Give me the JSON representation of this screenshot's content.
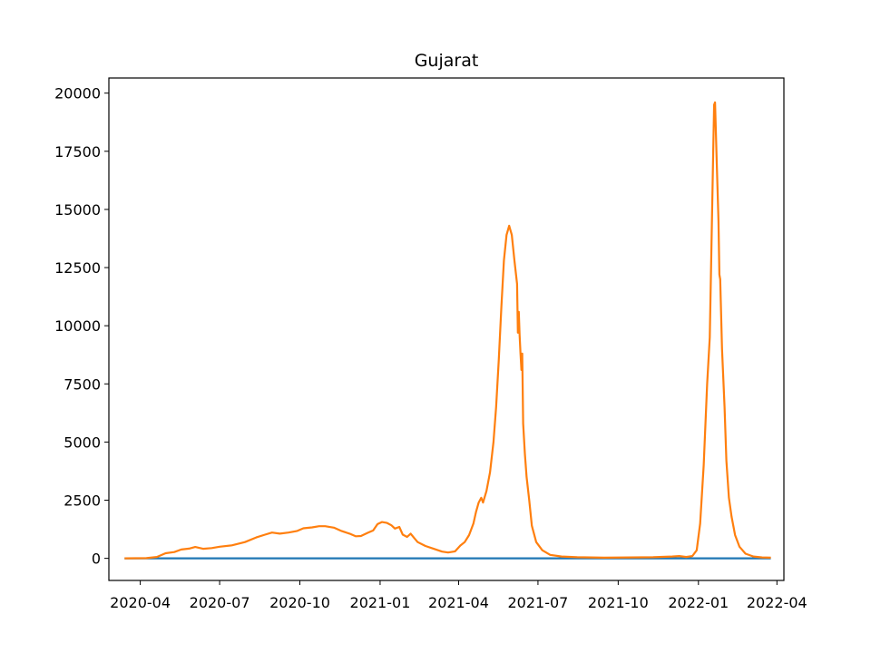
{
  "chart_data": {
    "type": "line",
    "title": "Gujarat",
    "xlabel": "",
    "ylabel": "",
    "ylim": [
      -950,
      20650
    ],
    "xlim": [
      "2020-02-25",
      "2022-04-09"
    ],
    "grid": false,
    "yticks": [
      0,
      2500,
      5000,
      7500,
      10000,
      12500,
      15000,
      17500,
      20000
    ],
    "ytick_labels": [
      "0",
      "2500",
      "5000",
      "7500",
      "10000",
      "12500",
      "15000",
      "17500",
      "20000"
    ],
    "xticks": [
      "2020-04-01",
      "2020-07-01",
      "2020-10-01",
      "2021-01-01",
      "2021-04-01",
      "2021-07-01",
      "2021-10-01",
      "2022-01-01",
      "2022-04-01"
    ],
    "xtick_labels": [
      "2020-04",
      "2020-07",
      "2020-10",
      "2021-01",
      "2021-04",
      "2021-07",
      "2021-10",
      "2022-01",
      "2022-04"
    ],
    "series": [
      {
        "color": "#1f77b4",
        "points": [
          [
            "2020-03-14",
            0
          ],
          [
            "2022-03-25",
            0
          ]
        ]
      },
      {
        "color": "#ff7f0e",
        "points": [
          [
            "2020-03-14",
            0
          ],
          [
            "2020-04-08",
            10
          ],
          [
            "2020-04-20",
            60
          ],
          [
            "2020-04-30",
            220
          ],
          [
            "2020-05-10",
            270
          ],
          [
            "2020-05-18",
            380
          ],
          [
            "2020-05-27",
            420
          ],
          [
            "2020-06-03",
            490
          ],
          [
            "2020-06-12",
            410
          ],
          [
            "2020-06-22",
            440
          ],
          [
            "2020-07-01",
            500
          ],
          [
            "2020-07-15",
            560
          ],
          [
            "2020-07-30",
            700
          ],
          [
            "2020-08-12",
            900
          ],
          [
            "2020-08-22",
            1020
          ],
          [
            "2020-08-30",
            1110
          ],
          [
            "2020-09-08",
            1060
          ],
          [
            "2020-09-18",
            1110
          ],
          [
            "2020-09-28",
            1180
          ],
          [
            "2020-10-05",
            1290
          ],
          [
            "2020-10-15",
            1330
          ],
          [
            "2020-10-23",
            1380
          ],
          [
            "2020-10-30",
            1380
          ],
          [
            "2020-11-09",
            1320
          ],
          [
            "2020-11-18",
            1170
          ],
          [
            "2020-11-27",
            1060
          ],
          [
            "2020-12-04",
            950
          ],
          [
            "2020-12-10",
            960
          ],
          [
            "2020-12-18",
            1100
          ],
          [
            "2020-12-24",
            1200
          ],
          [
            "2020-12-29",
            1470
          ],
          [
            "2021-01-03",
            1560
          ],
          [
            "2021-01-09",
            1520
          ],
          [
            "2021-01-14",
            1420
          ],
          [
            "2021-01-18",
            1280
          ],
          [
            "2021-01-23",
            1350
          ],
          [
            "2021-01-27",
            1020
          ],
          [
            "2021-02-01",
            920
          ],
          [
            "2021-02-05",
            1060
          ],
          [
            "2021-02-09",
            880
          ],
          [
            "2021-02-13",
            700
          ],
          [
            "2021-02-22",
            530
          ],
          [
            "2021-03-03",
            420
          ],
          [
            "2021-03-13",
            290
          ],
          [
            "2021-03-20",
            250
          ],
          [
            "2021-03-28",
            300
          ],
          [
            "2021-04-03",
            550
          ],
          [
            "2021-04-08",
            700
          ],
          [
            "2021-04-13",
            1000
          ],
          [
            "2021-04-18",
            1500
          ],
          [
            "2021-04-21",
            2000
          ],
          [
            "2021-04-24",
            2400
          ],
          [
            "2021-04-27",
            2600
          ],
          [
            "2021-04-29",
            2400
          ],
          [
            "2021-05-03",
            2900
          ],
          [
            "2021-05-07",
            3700
          ],
          [
            "2021-05-11",
            5000
          ],
          [
            "2021-05-14",
            6500
          ],
          [
            "2021-05-17",
            8500
          ],
          [
            "2021-05-20",
            10800
          ],
          [
            "2021-05-23",
            12800
          ],
          [
            "2021-05-26",
            13900
          ],
          [
            "2021-05-29",
            14300
          ],
          [
            "2021-06-01",
            13900
          ],
          [
            "2021-06-04",
            12800
          ],
          [
            "2021-06-07",
            11800
          ],
          [
            "2021-06-08",
            9700
          ],
          [
            "2021-06-09",
            10600
          ],
          [
            "2021-06-10",
            9600
          ],
          [
            "2021-06-11",
            8800
          ],
          [
            "2021-06-12",
            8100
          ],
          [
            "2021-06-13",
            8800
          ],
          [
            "2021-06-14",
            5800
          ],
          [
            "2021-06-16",
            4500
          ],
          [
            "2021-06-18",
            3500
          ],
          [
            "2021-06-21",
            2500
          ],
          [
            "2021-06-24",
            1400
          ],
          [
            "2021-06-29",
            700
          ],
          [
            "2021-07-06",
            350
          ],
          [
            "2021-07-15",
            150
          ],
          [
            "2021-07-28",
            80
          ],
          [
            "2021-08-15",
            50
          ],
          [
            "2021-09-15",
            30
          ],
          [
            "2021-10-15",
            40
          ],
          [
            "2021-11-10",
            50
          ],
          [
            "2021-12-02",
            80
          ],
          [
            "2021-12-10",
            100
          ],
          [
            "2021-12-18",
            60
          ],
          [
            "2021-12-25",
            100
          ],
          [
            "2021-12-30",
            350
          ],
          [
            "2022-01-03",
            1500
          ],
          [
            "2022-01-07",
            4000
          ],
          [
            "2022-01-11",
            7500
          ],
          [
            "2022-01-14",
            9500
          ],
          [
            "2022-01-16",
            13500
          ],
          [
            "2022-01-18",
            17500
          ],
          [
            "2022-01-19",
            19500
          ],
          [
            "2022-01-20",
            19600
          ],
          [
            "2022-01-22",
            17000
          ],
          [
            "2022-01-24",
            14500
          ],
          [
            "2022-01-25",
            12200
          ],
          [
            "2022-01-26",
            12000
          ],
          [
            "2022-01-28",
            9000
          ],
          [
            "2022-01-31",
            6500
          ],
          [
            "2022-02-02",
            4200
          ],
          [
            "2022-02-05",
            2600
          ],
          [
            "2022-02-08",
            1800
          ],
          [
            "2022-02-12",
            1000
          ],
          [
            "2022-02-17",
            500
          ],
          [
            "2022-02-24",
            200
          ],
          [
            "2022-03-05",
            80
          ],
          [
            "2022-03-15",
            40
          ],
          [
            "2022-03-25",
            30
          ]
        ]
      }
    ]
  }
}
